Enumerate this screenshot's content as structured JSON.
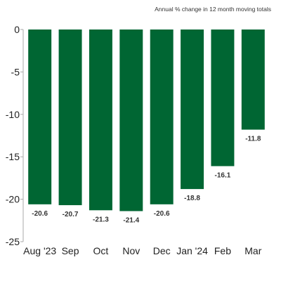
{
  "chart_data": {
    "type": "bar",
    "subtitle": "Annual % change in 12 month moving totals",
    "categories": [
      "Aug '23",
      "Sep",
      "Oct",
      "Nov",
      "Dec",
      "Jan '24",
      "Feb",
      "Mar"
    ],
    "values": [
      -20.6,
      -20.7,
      -21.3,
      -21.4,
      -20.6,
      -18.8,
      -16.1,
      -11.8
    ],
    "data_labels": [
      "-20.6",
      "-20.7",
      "-21.3",
      "-21.4",
      "-20.6",
      "-18.8",
      "-16.1",
      "-11.8"
    ],
    "yticks": [
      0,
      -5,
      -10,
      -15,
      -20,
      -25
    ],
    "ytick_labels": [
      "0",
      "-5",
      "-10",
      "-15",
      "-20",
      "-25"
    ],
    "ylim": [
      -25,
      0
    ],
    "grid": false,
    "bar_color": "#006633",
    "axis_color": "#aaaaaa"
  }
}
